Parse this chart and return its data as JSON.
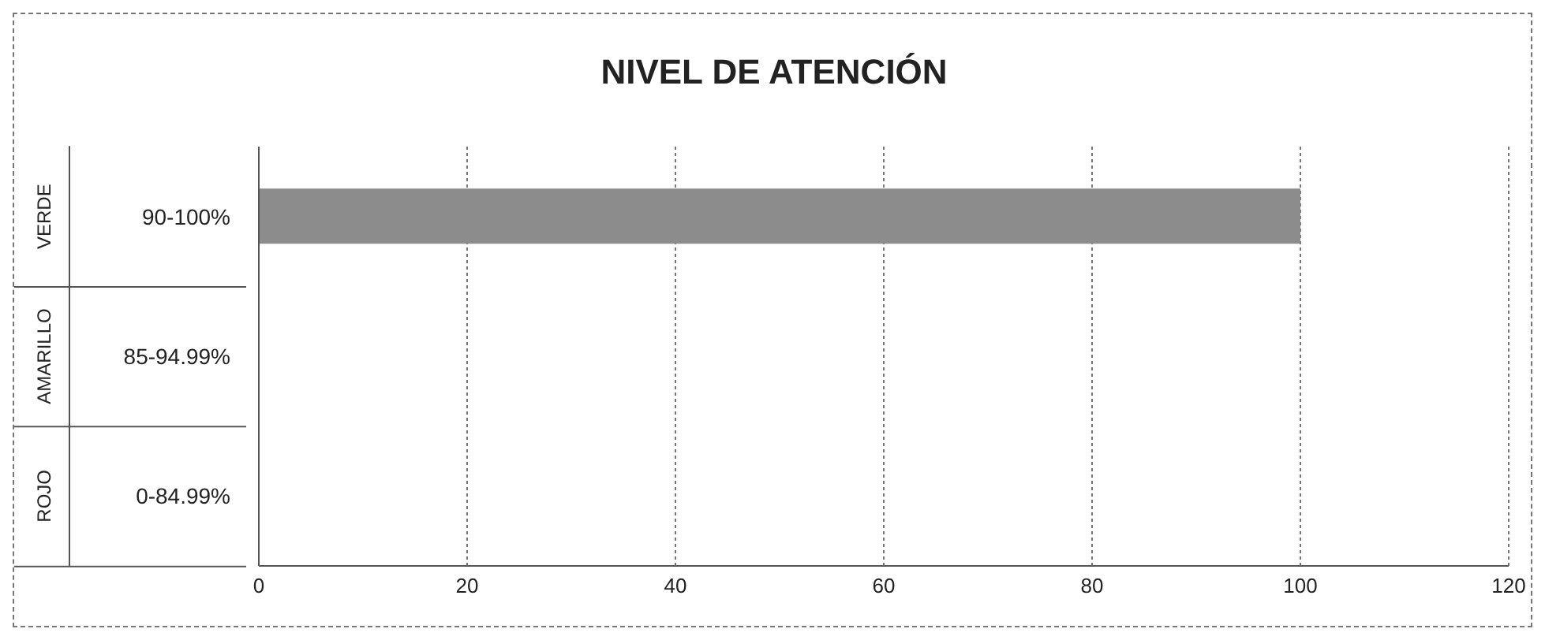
{
  "chart_data": {
    "type": "bar",
    "orientation": "horizontal",
    "title": "NIVEL DE ATENCIÓN",
    "categories": [
      "90-100%",
      "85-94.99%",
      "0-84.99%"
    ],
    "values": [
      100,
      0,
      0
    ],
    "color": "#8c8c8c",
    "annotations": [
      "VERDE",
      "AMARILLO",
      "ROJO"
    ],
    "xlim": [
      0,
      120
    ],
    "xticks": [
      0,
      20,
      40,
      60,
      80,
      100,
      120
    ],
    "grid": "x"
  }
}
